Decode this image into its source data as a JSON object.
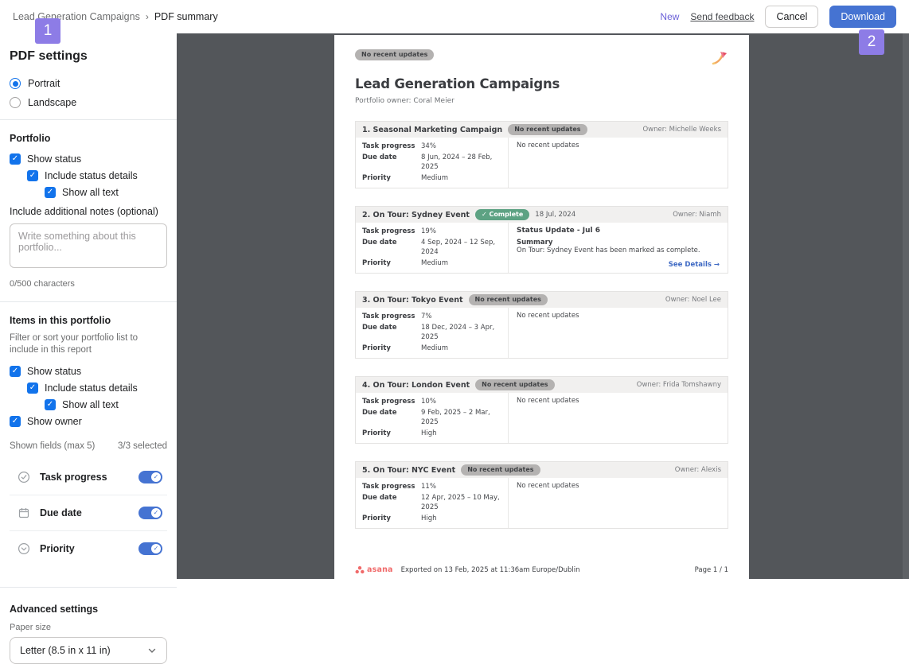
{
  "colors": {
    "accent_blue": "#4573d2",
    "check_blue": "#1273eb",
    "badge_purple": "#8d7ce6",
    "green_pill": "#5da283",
    "asana_coral": "#f06a6a",
    "preview_bg": "#53565a"
  },
  "topbar": {
    "breadcrumb_root": "Lead Generation Campaigns",
    "breadcrumb_sep": "›",
    "breadcrumb_current": "PDF summary",
    "new_label": "New",
    "send_feedback": "Send feedback",
    "cancel": "Cancel",
    "download": "Download"
  },
  "overlays": {
    "badge1": "1",
    "badge2": "2"
  },
  "sidebar": {
    "title": "PDF settings",
    "orientation": [
      {
        "label": "Portrait",
        "selected": true
      },
      {
        "label": "Landscape",
        "selected": false
      }
    ],
    "portfolio_section": {
      "title": "Portfolio",
      "checkboxes": [
        {
          "label": "Show status",
          "checked": true,
          "indent": 0
        },
        {
          "label": "Include status details",
          "checked": true,
          "indent": 1
        },
        {
          "label": "Show all text",
          "checked": true,
          "indent": 2
        }
      ],
      "notes_label": "Include additional notes (optional)",
      "notes_placeholder": "Write something about this portfolio...",
      "char_count": "0/500 characters"
    },
    "items_section": {
      "title": "Items in this portfolio",
      "description": "Filter or sort your portfolio list to include in this report",
      "checkboxes": [
        {
          "label": "Show status",
          "checked": true,
          "indent": 0
        },
        {
          "label": "Include status details",
          "checked": true,
          "indent": 1
        },
        {
          "label": "Show all text",
          "checked": true,
          "indent": 2
        },
        {
          "label": "Show owner",
          "checked": true,
          "indent": 0
        }
      ],
      "shown_fields_label": "Shown fields (max 5)",
      "selected_count": "3/3 selected",
      "fields": [
        {
          "label": "Task progress",
          "icon": "check-circle-icon",
          "enabled": true
        },
        {
          "label": "Due date",
          "icon": "calendar-icon",
          "enabled": true
        },
        {
          "label": "Priority",
          "icon": "chevron-circle-icon",
          "enabled": true
        }
      ]
    },
    "advanced": {
      "title": "Advanced settings",
      "paper_size_label": "Paper size",
      "paper_size_value": "Letter (8.5 in x 11 in)"
    }
  },
  "preview": {
    "status_pill": "No recent updates",
    "title": "Lead Generation Campaigns",
    "owner_line": "Portfolio owner: Coral Meier",
    "cards": [
      {
        "name": "1. Seasonal Marketing Campaign",
        "pill": "No recent updates",
        "pill_type": "gray",
        "date": "",
        "owner": "Owner: Michelle Weeks",
        "fields": [
          [
            "Task progress",
            "34%"
          ],
          [
            "Due date",
            "8 Jun, 2024 – 28 Feb, 2025"
          ],
          [
            "Priority",
            "Medium"
          ]
        ],
        "status": {
          "type": "plain",
          "text": "No recent updates"
        }
      },
      {
        "name": "2. On Tour: Sydney Event",
        "pill": "✓ Complete",
        "pill_type": "green",
        "date": "18 Jul, 2024",
        "owner": "Owner: Niamh",
        "fields": [
          [
            "Task progress",
            "19%"
          ],
          [
            "Due date",
            "4 Sep, 2024 – 12 Sep, 2024"
          ],
          [
            "Priority",
            "Medium"
          ]
        ],
        "status": {
          "type": "update",
          "title": "Status Update - Jul 6",
          "summary_label": "Summary",
          "text": "On Tour: Sydney Event has been marked as complete.",
          "link": "See Details →"
        }
      },
      {
        "name": "3. On Tour: Tokyo Event",
        "pill": "No recent updates",
        "pill_type": "gray",
        "date": "",
        "owner": "Owner: Noel Lee",
        "fields": [
          [
            "Task progress",
            "7%"
          ],
          [
            "Due date",
            "18 Dec, 2024 – 3 Apr, 2025"
          ],
          [
            "Priority",
            "Medium"
          ]
        ],
        "status": {
          "type": "plain",
          "text": "No recent updates"
        }
      },
      {
        "name": "4. On Tour: London Event",
        "pill": "No recent updates",
        "pill_type": "gray",
        "date": "",
        "owner": "Owner: Frida Tomshawny",
        "fields": [
          [
            "Task progress",
            "10%"
          ],
          [
            "Due date",
            "9 Feb, 2025 – 2 Mar, 2025"
          ],
          [
            "Priority",
            "High"
          ]
        ],
        "status": {
          "type": "plain",
          "text": "No recent updates"
        }
      },
      {
        "name": "5. On Tour: NYC Event",
        "pill": "No recent updates",
        "pill_type": "gray",
        "date": "",
        "owner": "Owner: Alexis",
        "fields": [
          [
            "Task progress",
            "11%"
          ],
          [
            "Due date",
            "12 Apr, 2025 – 10 May, 2025"
          ],
          [
            "Priority",
            "High"
          ]
        ],
        "status": {
          "type": "plain",
          "text": "No recent updates"
        }
      }
    ],
    "footer": {
      "brand": "asana",
      "exported": "Exported on 13 Feb, 2025 at 11:36am Europe/Dublin",
      "page": "Page 1 / 1"
    }
  }
}
